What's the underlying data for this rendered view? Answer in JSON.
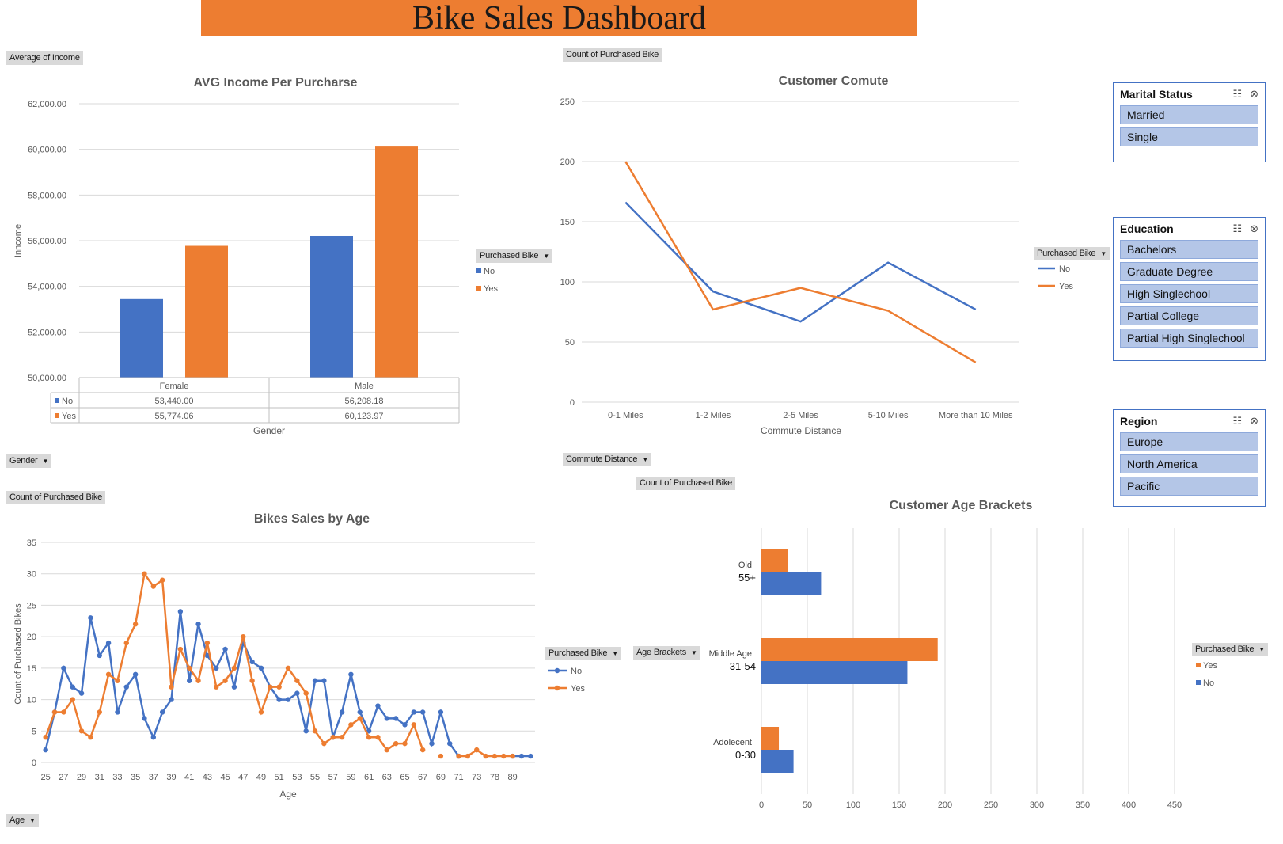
{
  "dashboard_title": "Bike Sales Dashboard",
  "colors": {
    "no": "#4472C4",
    "yes": "#ED7D31",
    "banner": "#ED7D31",
    "slicer_item": "#B4C6E7"
  },
  "field_buttons": {
    "avg_income": "Average of Income",
    "gender": "Gender",
    "purchased_bike_1": "Purchased Bike",
    "count_purchased_1": "Count of Purchased Bike",
    "purchased_bike_2": "Purchased Bike",
    "commute_distance": "Commute Distance",
    "count_purchased_2": "Count of Purchased Bike",
    "count_purchased_3": "Count of Purchased Bike",
    "purchased_bike_3": "Purchased Bike",
    "age": "Age",
    "age_brackets": "Age Brackets",
    "purchased_bike_4": "Purchased Bike"
  },
  "chart_data": [
    {
      "type": "bar",
      "title": "AVG Income Per Purcharse",
      "xlabel": "Gender",
      "ylabel": "Inncome",
      "categories": [
        "Female",
        "Male"
      ],
      "ylim": [
        50000,
        62000
      ],
      "yticks": [
        "50,000.00",
        "52,000.00",
        "54,000.00",
        "56,000.00",
        "58,000.00",
        "60,000.00",
        "62,000.00"
      ],
      "series": [
        {
          "name": "No",
          "values": [
            53440.0,
            56208.18
          ],
          "labels": [
            "53,440.00",
            "56,208.18"
          ]
        },
        {
          "name": "Yes",
          "values": [
            55774.06,
            60123.97
          ],
          "labels": [
            "55,774.06",
            "60,123.97"
          ]
        }
      ],
      "legend": "right"
    },
    {
      "type": "line",
      "title": "Customer Comute",
      "xlabel": "Commute Distance",
      "ylabel": "",
      "categories": [
        "0-1 Miles",
        "1-2 Miles",
        "2-5 Miles",
        "5-10 Miles",
        "More than 10 Miles"
      ],
      "ylim": [
        0,
        250
      ],
      "yticks": [
        "0",
        "50",
        "100",
        "150",
        "200",
        "250"
      ],
      "series": [
        {
          "name": "No",
          "values": [
            166,
            92,
            67,
            116,
            77
          ]
        },
        {
          "name": "Yes",
          "values": [
            200,
            77,
            95,
            76,
            33
          ]
        }
      ],
      "legend": "right"
    },
    {
      "type": "line",
      "title": "Bikes Sales by Age",
      "xlabel": "Age",
      "ylabel": "Count of Purchased Bikes",
      "ylim": [
        0,
        35
      ],
      "yticks": [
        "0",
        "5",
        "10",
        "15",
        "20",
        "25",
        "30",
        "35"
      ],
      "xticks": [
        "25",
        "27",
        "29",
        "31",
        "33",
        "35",
        "37",
        "39",
        "41",
        "43",
        "45",
        "47",
        "49",
        "51",
        "53",
        "55",
        "57",
        "59",
        "61",
        "63",
        "65",
        "67",
        "69",
        "71",
        "73",
        "78",
        "89"
      ],
      "series": [
        {
          "name": "No",
          "values": [
            2,
            8,
            15,
            12,
            11,
            23,
            17,
            19,
            8,
            12,
            14,
            7,
            4,
            8,
            10,
            24,
            13,
            22,
            17,
            15,
            18,
            12,
            19,
            16,
            15,
            12,
            10,
            10,
            11,
            5,
            13,
            13,
            4,
            8,
            14,
            8,
            5,
            9,
            7,
            7,
            6,
            8,
            8,
            3,
            8,
            3,
            1,
            null,
            null,
            null,
            null,
            null,
            1,
            1,
            1
          ]
        },
        {
          "name": "Yes",
          "values": [
            4,
            8,
            8,
            10,
            5,
            4,
            8,
            14,
            13,
            19,
            22,
            30,
            28,
            29,
            12,
            18,
            15,
            13,
            19,
            12,
            13,
            15,
            20,
            13,
            8,
            12,
            12,
            15,
            13,
            11,
            5,
            3,
            4,
            4,
            6,
            7,
            4,
            4,
            2,
            3,
            3,
            6,
            2,
            null,
            1,
            null,
            1,
            1,
            2,
            1,
            1,
            1,
            1,
            null,
            null
          ]
        }
      ],
      "legend": "right"
    },
    {
      "type": "bar",
      "orientation": "horizontal",
      "title": "Customer Age Brackets",
      "xlim": [
        0,
        450
      ],
      "xticks": [
        "0",
        "50",
        "100",
        "150",
        "200",
        "250",
        "300",
        "350",
        "400",
        "450"
      ],
      "categories": [
        {
          "name": "Old",
          "range": "55+"
        },
        {
          "name": "Middle Age",
          "range": "31-54"
        },
        {
          "name": "Adolecent",
          "range": "0-30"
        }
      ],
      "series": [
        {
          "name": "Yes",
          "values": [
            29,
            192,
            19
          ]
        },
        {
          "name": "No",
          "values": [
            65,
            159,
            35
          ]
        }
      ],
      "legend": "right"
    }
  ],
  "slicers": [
    {
      "title": "Marital Status",
      "items": [
        "Married",
        "Single"
      ]
    },
    {
      "title": "Education",
      "items": [
        "Bachelors",
        "Graduate Degree",
        "High Singlechool",
        "Partial College",
        "Partial High Singlechool"
      ]
    },
    {
      "title": "Region",
      "items": [
        "Europe",
        "North America",
        "Pacific"
      ]
    }
  ]
}
